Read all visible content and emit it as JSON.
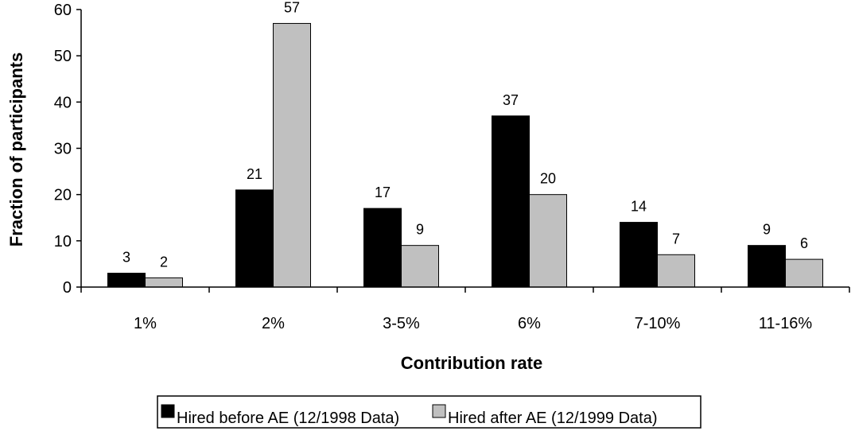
{
  "chart_data": {
    "type": "bar",
    "categories": [
      "1%",
      "2%",
      "3-5%",
      "6%",
      "7-10%",
      "11-16%"
    ],
    "series": [
      {
        "name": "Hired before AE (12/1998 Data)",
        "values": [
          3,
          21,
          17,
          37,
          14,
          9
        ],
        "color": "#000000",
        "data_labels": [
          "3",
          "21",
          "17",
          "37",
          "14",
          "9"
        ]
      },
      {
        "name": "Hired after AE (12/1999 Data)",
        "values": [
          2,
          57,
          9,
          20,
          7,
          6
        ],
        "color": "#c0c0c0",
        "data_labels": [
          "2",
          "57",
          "9",
          "20",
          "7",
          "6"
        ]
      }
    ],
    "xlabel": "Contribution rate",
    "ylabel": "Fraction of participants",
    "ylim": [
      0,
      60
    ],
    "yticks": [
      "0",
      "10",
      "20",
      "30",
      "40",
      "50",
      "60"
    ],
    "grid": false,
    "legend_position": "bottom"
  }
}
